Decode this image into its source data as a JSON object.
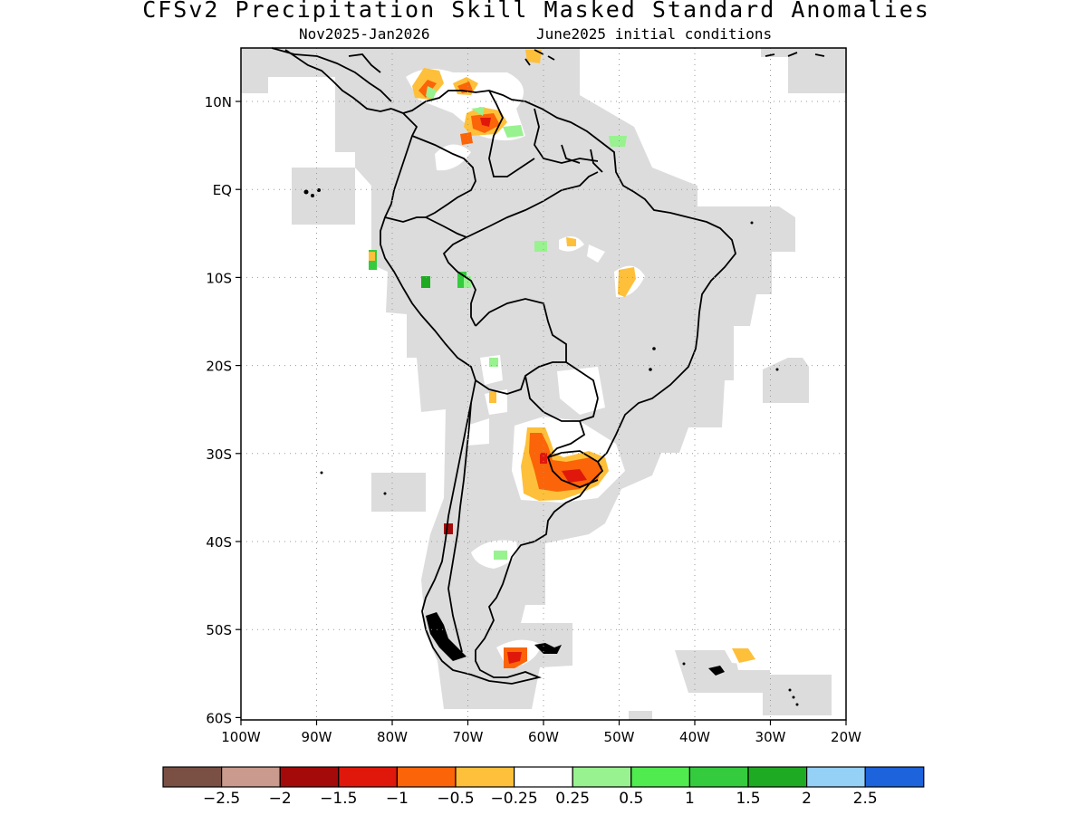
{
  "title": "CFSv2 Precipitation Skill Masked Standard Anomalies",
  "subtitle_period": "Nov2025-Jan2026",
  "subtitle_ic": "June2025 initial conditions",
  "y_axis_labels": [
    "10N",
    "EQ",
    "10S",
    "20S",
    "30S",
    "40S",
    "50S",
    "60S"
  ],
  "x_axis_labels": [
    "100W",
    "90W",
    "80W",
    "70W",
    "60W",
    "50W",
    "40W",
    "30W",
    "20W"
  ],
  "colorbar": {
    "colors": [
      "#7a4f44",
      "#c99a8d",
      "#a50a0a",
      "#e0180c",
      "#fb6408",
      "#fec03a",
      "#ffffff",
      "#98f28f",
      "#4feb4f",
      "#34cc3e",
      "#1eaa22",
      "#95d0f6",
      "#1c63dc"
    ],
    "labels": [
      "−2.5",
      "−2",
      "−1.5",
      "−1",
      "−0.5",
      "−0.25",
      "0.25",
      "0.5",
      "1",
      "1.5",
      "2",
      "2.5"
    ]
  },
  "colors": {
    "skill_mask": "#dcdcdc",
    "coastline": "#000000",
    "grid": "#999999"
  }
}
